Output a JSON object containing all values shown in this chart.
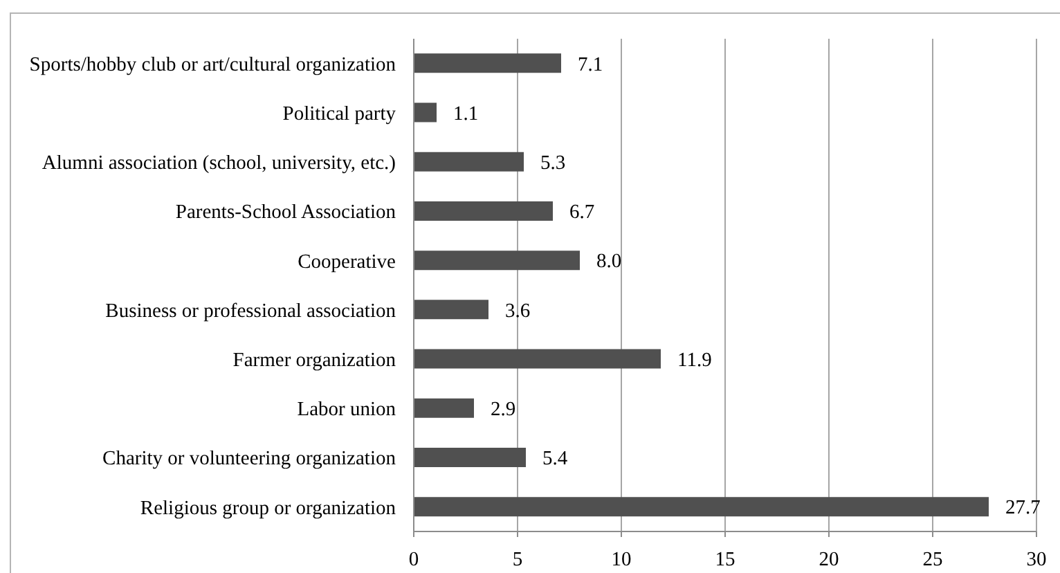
{
  "chart_data": {
    "type": "bar",
    "orientation": "horizontal",
    "categories": [
      "Sports/hobby club or art/cultural organization",
      "Political party",
      "Alumni association (school, university, etc.)",
      "Parents-School Association",
      "Cooperative",
      "Business or professional association",
      "Farmer organization",
      "Labor union",
      "Charity or volunteering organization",
      "Religious group or organization"
    ],
    "values": [
      7.1,
      1.1,
      5.3,
      6.7,
      8.0,
      3.6,
      11.9,
      2.9,
      5.4,
      27.7
    ],
    "value_labels": [
      "7.1",
      "1.1",
      "5.3",
      "6.7",
      "8.0",
      "3.6",
      "11.9",
      "2.9",
      "5.4",
      "27.7"
    ],
    "color": "#505050",
    "xlim": [
      0,
      30
    ],
    "xticks": [
      0,
      5,
      10,
      15,
      20,
      25,
      30
    ],
    "grid": "x"
  }
}
